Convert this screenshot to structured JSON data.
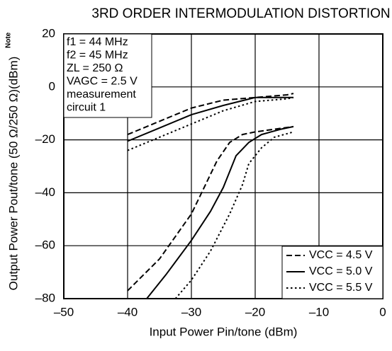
{
  "chart_data": {
    "type": "line",
    "title": "3RD ORDER INTERMODULATION DISTORTION",
    "x_label": "Input Power  Pin/tone (dBm)",
    "y_label": "Output Power  Pout/tone (50 Ω/250 Ω)(dBm)",
    "y_label_note": "Note",
    "annotations": [
      "f1 = 44 MHz",
      "f2 = 45 MHz",
      "ZL = 250 Ω",
      "VAGC = 2.5 V",
      "measurement",
      "circuit 1"
    ],
    "xlim": [
      -50,
      0
    ],
    "xticks": [
      {
        "value": -50,
        "label": "–50"
      },
      {
        "value": -40,
        "label": "–40"
      },
      {
        "value": -30,
        "label": "–30"
      },
      {
        "value": -20,
        "label": "–20"
      },
      {
        "value": -10,
        "label": "–10"
      },
      0
    ],
    "ylim": [
      -80,
      20
    ],
    "yticks": [
      {
        "value": -80,
        "label": "–80"
      },
      {
        "value": -60,
        "label": "–60"
      },
      {
        "value": -40,
        "label": "–40"
      },
      {
        "value": -20,
        "label": "–20"
      },
      0,
      20
    ],
    "grid": true,
    "legend": "lower right",
    "series": [
      {
        "name": "VCC = 4.5 V",
        "color": "#000000",
        "style": "dashed",
        "x": [
          -40,
          -35,
          -30,
          -25,
          -20,
          -15,
          -14
        ],
        "values": [
          -18,
          -13,
          -8,
          -5,
          -4,
          -3,
          -2.5
        ],
        "im3": {
          "x": [
            -40,
            -35,
            -30,
            -28,
            -26,
            -24,
            -22,
            -20,
            -17,
            -14
          ],
          "values": [
            -77,
            -65,
            -48,
            -38,
            -28,
            -21,
            -18,
            -17,
            -16,
            -15
          ]
        }
      },
      {
        "name": "VCC = 5.0 V",
        "color": "#000000",
        "style": "solid",
        "x": [
          -40,
          -35,
          -30,
          -25,
          -20,
          -15,
          -14
        ],
        "values": [
          -20.5,
          -15.5,
          -10.5,
          -7,
          -4,
          -4,
          -4
        ],
        "im3": {
          "x": [
            -37,
            -34,
            -30,
            -27,
            -25,
            -24,
            -23,
            -21,
            -19,
            -16,
            -14
          ],
          "values": [
            -80,
            -71,
            -58,
            -47,
            -38,
            -32,
            -26,
            -21,
            -18,
            -16,
            -15
          ]
        }
      },
      {
        "name": "VCC = 5.5 V",
        "color": "#000000",
        "style": "dotted",
        "x": [
          -40,
          -35,
          -30,
          -25,
          -20,
          -15,
          -14
        ],
        "values": [
          -24,
          -19,
          -14,
          -9,
          -5.5,
          -4.5,
          -4
        ],
        "im3": {
          "x": [
            -32.5,
            -30,
            -27,
            -24,
            -22,
            -21,
            -19,
            -17,
            -14
          ],
          "values": [
            -80,
            -73,
            -62,
            -48,
            -37,
            -29,
            -23,
            -19,
            -17
          ]
        }
      }
    ]
  }
}
